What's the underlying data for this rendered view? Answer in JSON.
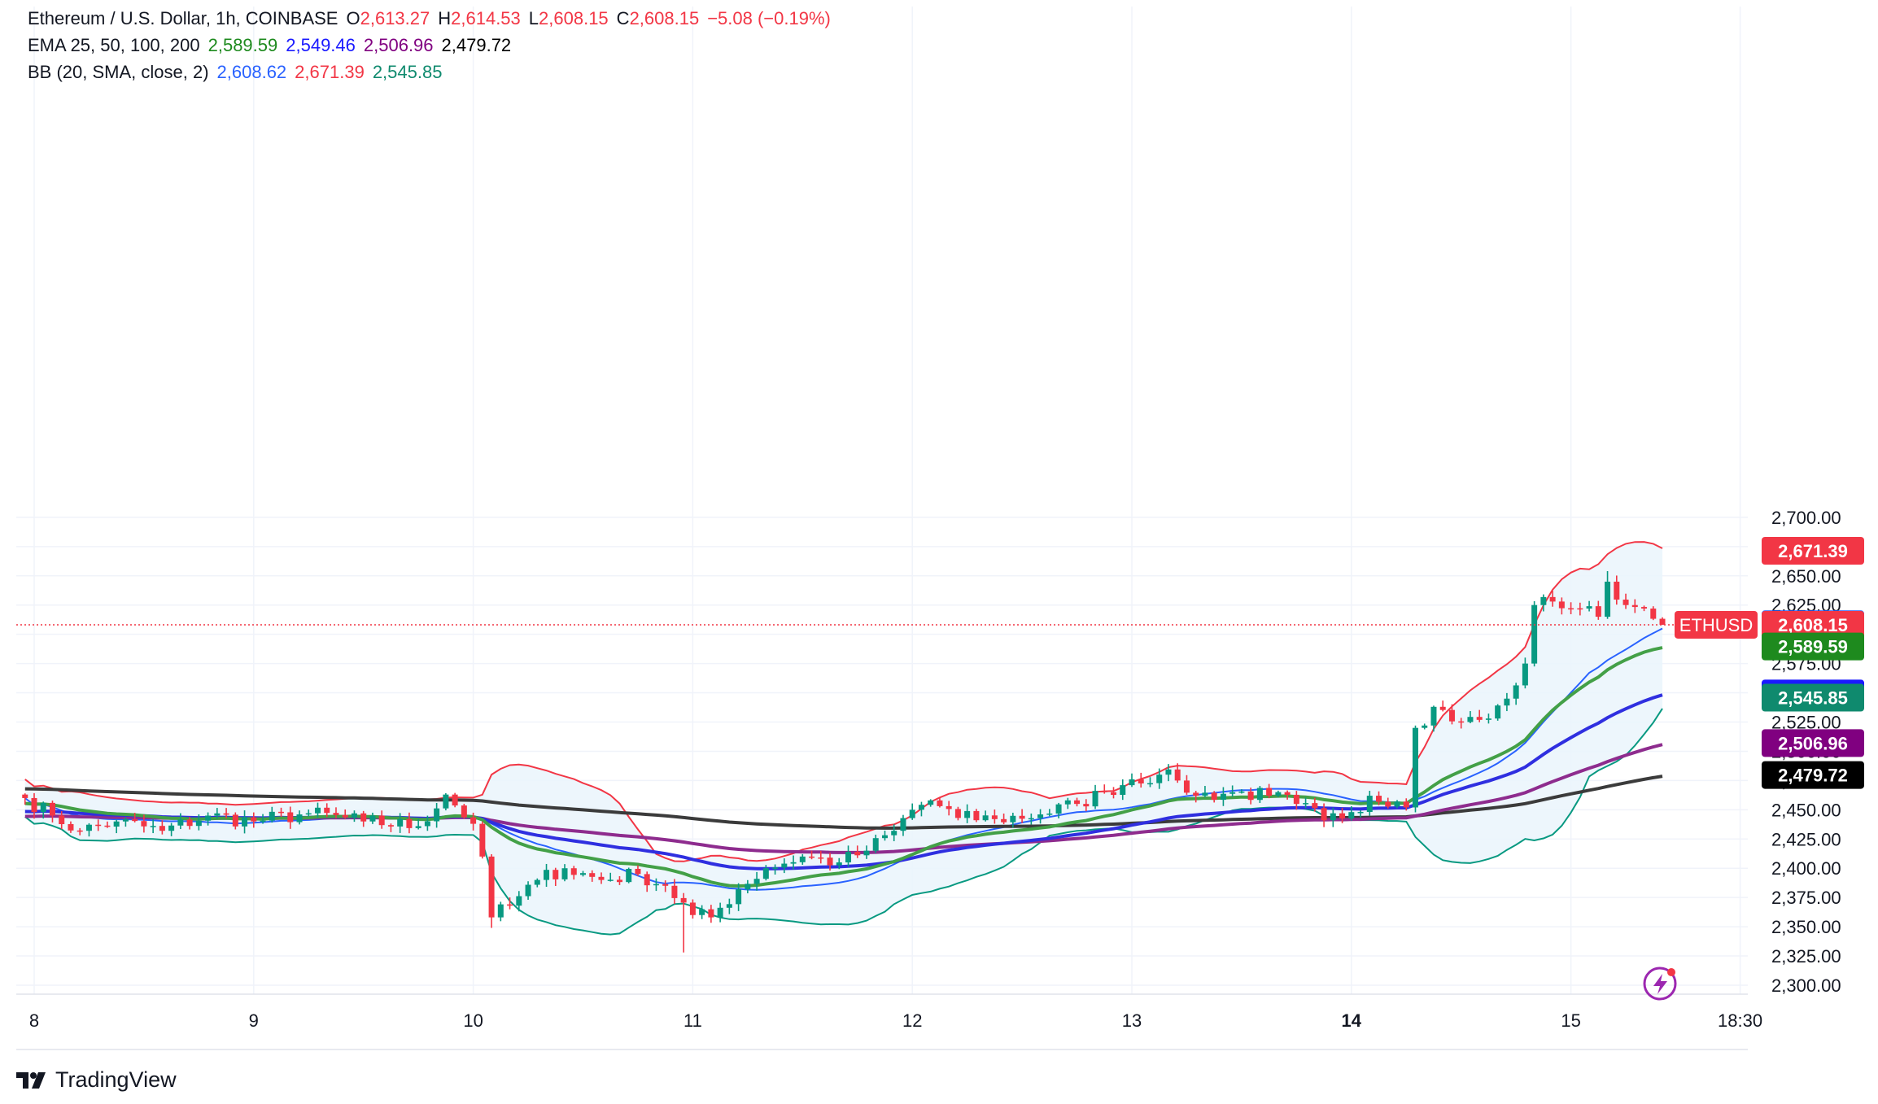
{
  "header": {
    "symbol": "Ethereum / U.S. Dollar, 1h, COINBASE",
    "o_label": "O",
    "o_value": "2,613.27",
    "h_label": "H",
    "h_value": "2,614.53",
    "l_label": "L",
    "l_value": "2,608.15",
    "c_label": "C",
    "c_value": "2,608.15",
    "change": "−5.08 (−0.19%)",
    "ema_label": "EMA 25, 50, 100, 200",
    "ema_values": [
      "2,589.59",
      "2,549.46",
      "2,506.96",
      "2,479.72"
    ],
    "bb_label": "BB (20, SMA, close, 2)",
    "bb_values": [
      "2,608.62",
      "2,671.39",
      "2,545.85"
    ]
  },
  "brand": {
    "name": "TradingView",
    "logo_icon": "tradingview-logo-icon"
  },
  "colors": {
    "up": "#089981",
    "down": "#f23645",
    "ema25": "#43a047",
    "ema50": "#2f2fe0",
    "ema100": "#8e2c8e",
    "ema200": "#3b3b3b",
    "bb_basis": "#2962ff",
    "bb_upper": "#f23645",
    "bb_lower": "#089981",
    "bb_fill": "#eaf4fb",
    "price_line": "#f23645"
  },
  "chart_data": {
    "type": "candlestick",
    "title": "Ethereum / U.S. Dollar, 1h, COINBASE",
    "xlabel": "",
    "ylabel": "",
    "ylim": [
      2295,
      2710
    ],
    "grid": true,
    "y_ticks": [
      "2,700.00",
      "2,675.00",
      "2,650.00",
      "2,625.00",
      "2,600.00",
      "2,575.00",
      "2,550.00",
      "2,525.00",
      "2,500.00",
      "2,475.00",
      "2,450.00",
      "2,425.00",
      "2,400.00",
      "2,375.00",
      "2,350.00",
      "2,325.00",
      "2,300.00"
    ],
    "x_ticks": [
      {
        "label": "8",
        "day": 8,
        "hour": 0
      },
      {
        "label": "9",
        "day": 9,
        "hour": 0
      },
      {
        "label": "10",
        "day": 10,
        "hour": 0
      },
      {
        "label": "11",
        "day": 11,
        "hour": 0
      },
      {
        "label": "12",
        "day": 12,
        "hour": 0
      },
      {
        "label": "13",
        "day": 13,
        "hour": 0
      },
      {
        "label": "14",
        "day": 14,
        "hour": 0,
        "bold": true
      },
      {
        "label": "15",
        "day": 15,
        "hour": 0
      },
      {
        "label": "18:30",
        "day": 15,
        "hour": 18.5
      }
    ],
    "candles_start": {
      "day": 7,
      "hour": 23
    },
    "anchors": [
      {
        "day": 7,
        "hour": 23,
        "price": 2460
      },
      {
        "day": 8,
        "hour": 2,
        "price": 2445
      },
      {
        "day": 8,
        "hour": 5,
        "price": 2432
      },
      {
        "day": 8,
        "hour": 9,
        "price": 2440
      },
      {
        "day": 8,
        "hour": 14,
        "price": 2432
      },
      {
        "day": 8,
        "hour": 19,
        "price": 2445
      },
      {
        "day": 9,
        "hour": 0,
        "price": 2440
      },
      {
        "day": 9,
        "hour": 6,
        "price": 2447
      },
      {
        "day": 9,
        "hour": 12,
        "price": 2440
      },
      {
        "day": 9,
        "hour": 18,
        "price": 2436
      },
      {
        "day": 9,
        "hour": 21,
        "price": 2463
      },
      {
        "day": 10,
        "hour": 0,
        "price": 2438
      },
      {
        "day": 10,
        "hour": 1,
        "price": 2410
      },
      {
        "day": 10,
        "hour": 2,
        "price": 2358
      },
      {
        "day": 10,
        "hour": 4,
        "price": 2368
      },
      {
        "day": 10,
        "hour": 7,
        "price": 2390
      },
      {
        "day": 10,
        "hour": 10,
        "price": 2400
      },
      {
        "day": 10,
        "hour": 14,
        "price": 2390
      },
      {
        "day": 10,
        "hour": 18,
        "price": 2395
      },
      {
        "day": 10,
        "hour": 21,
        "price": 2385
      },
      {
        "day": 11,
        "hour": 0,
        "price": 2360
      },
      {
        "day": 11,
        "hour": 2,
        "price": 2358
      },
      {
        "day": 11,
        "hour": 5,
        "price": 2382
      },
      {
        "day": 11,
        "hour": 8,
        "price": 2400
      },
      {
        "day": 11,
        "hour": 12,
        "price": 2410
      },
      {
        "day": 11,
        "hour": 16,
        "price": 2405
      },
      {
        "day": 11,
        "hour": 19,
        "price": 2415
      },
      {
        "day": 11,
        "hour": 22,
        "price": 2432
      },
      {
        "day": 12,
        "hour": 0,
        "price": 2450
      },
      {
        "day": 12,
        "hour": 2,
        "price": 2458
      },
      {
        "day": 12,
        "hour": 5,
        "price": 2443
      },
      {
        "day": 12,
        "hour": 9,
        "price": 2442
      },
      {
        "day": 12,
        "hour": 14,
        "price": 2446
      },
      {
        "day": 12,
        "hour": 18,
        "price": 2455
      },
      {
        "day": 12,
        "hour": 21,
        "price": 2465
      },
      {
        "day": 13,
        "hour": 0,
        "price": 2476
      },
      {
        "day": 13,
        "hour": 3,
        "price": 2480
      },
      {
        "day": 13,
        "hour": 5,
        "price": 2475
      },
      {
        "day": 13,
        "hour": 7,
        "price": 2462
      },
      {
        "day": 13,
        "hour": 11,
        "price": 2465
      },
      {
        "day": 13,
        "hour": 15,
        "price": 2462
      },
      {
        "day": 13,
        "hour": 18,
        "price": 2455
      },
      {
        "day": 13,
        "hour": 21,
        "price": 2441
      },
      {
        "day": 14,
        "hour": 0,
        "price": 2448
      },
      {
        "day": 14,
        "hour": 2,
        "price": 2462
      },
      {
        "day": 14,
        "hour": 5,
        "price": 2457
      },
      {
        "day": 14,
        "hour": 6,
        "price": 2452
      },
      {
        "day": 14,
        "hour": 7,
        "price": 2520
      },
      {
        "day": 14,
        "hour": 9,
        "price": 2538
      },
      {
        "day": 14,
        "hour": 12,
        "price": 2525
      },
      {
        "day": 14,
        "hour": 15,
        "price": 2528
      },
      {
        "day": 14,
        "hour": 17,
        "price": 2545
      },
      {
        "day": 14,
        "hour": 19,
        "price": 2575
      },
      {
        "day": 14,
        "hour": 20,
        "price": 2625
      },
      {
        "day": 14,
        "hour": 22,
        "price": 2628
      },
      {
        "day": 15,
        "hour": 1,
        "price": 2622
      },
      {
        "day": 15,
        "hour": 3,
        "price": 2615
      },
      {
        "day": 15,
        "hour": 4,
        "price": 2645
      },
      {
        "day": 15,
        "hour": 6,
        "price": 2625
      },
      {
        "day": 15,
        "hour": 8,
        "price": 2622
      },
      {
        "day": 15,
        "hour": 9,
        "price": 2613.27
      },
      {
        "day": 15,
        "hour": 10,
        "price": 2608.15
      }
    ],
    "last": {
      "open": 2613.27,
      "high": 2614.53,
      "low": 2608.15,
      "close": 2608.15
    },
    "wick_extremes": [
      {
        "day": 10,
        "hour": 2,
        "low": 2349
      },
      {
        "day": 10,
        "hour": 23,
        "low": 2328
      },
      {
        "day": 15,
        "hour": 4,
        "high": 2654
      }
    ],
    "series": [
      {
        "name": "EMA 25",
        "period": 25,
        "color": "#43a047",
        "last": 2589.59
      },
      {
        "name": "EMA 50",
        "period": 50,
        "color": "#2f2fe0",
        "last": 2549.46
      },
      {
        "name": "EMA 100",
        "period": 100,
        "color": "#8e2c8e",
        "last": 2506.96
      },
      {
        "name": "EMA 200",
        "period": 200,
        "color": "#3b3b3b",
        "last": 2479.72
      },
      {
        "name": "BB basis",
        "color": "#2962ff",
        "last": 2608.62
      },
      {
        "name": "BB upper",
        "color": "#f23645",
        "last": 2671.39
      },
      {
        "name": "BB lower",
        "color": "#089981",
        "last": 2545.85
      }
    ],
    "price_labels": [
      {
        "text": "2,671.39",
        "value": 2671.39,
        "bg": "#f23645",
        "fg": "#ffffff"
      },
      {
        "text": "2,608.62",
        "value": 2608.62,
        "bg": "#2962ff",
        "fg": "#ffffff"
      },
      {
        "text": "2,608.15",
        "value": 2608.15,
        "bg": "#f23645",
        "fg": "#ffffff",
        "tag": "ETHUSD"
      },
      {
        "text": "2,589.59",
        "value": 2589.59,
        "bg": "#1e8a1e",
        "fg": "#ffffff"
      },
      {
        "text": "2,549.46",
        "value": 2549.46,
        "bg": "#1a1aff",
        "fg": "#ffffff"
      },
      {
        "text": "2,545.85",
        "value": 2545.85,
        "bg": "#0f8a6e",
        "fg": "#ffffff"
      },
      {
        "text": "2,506.96",
        "value": 2506.96,
        "bg": "#800080",
        "fg": "#ffffff"
      },
      {
        "text": "2,479.72",
        "value": 2479.72,
        "bg": "#000000",
        "fg": "#ffffff"
      }
    ]
  }
}
